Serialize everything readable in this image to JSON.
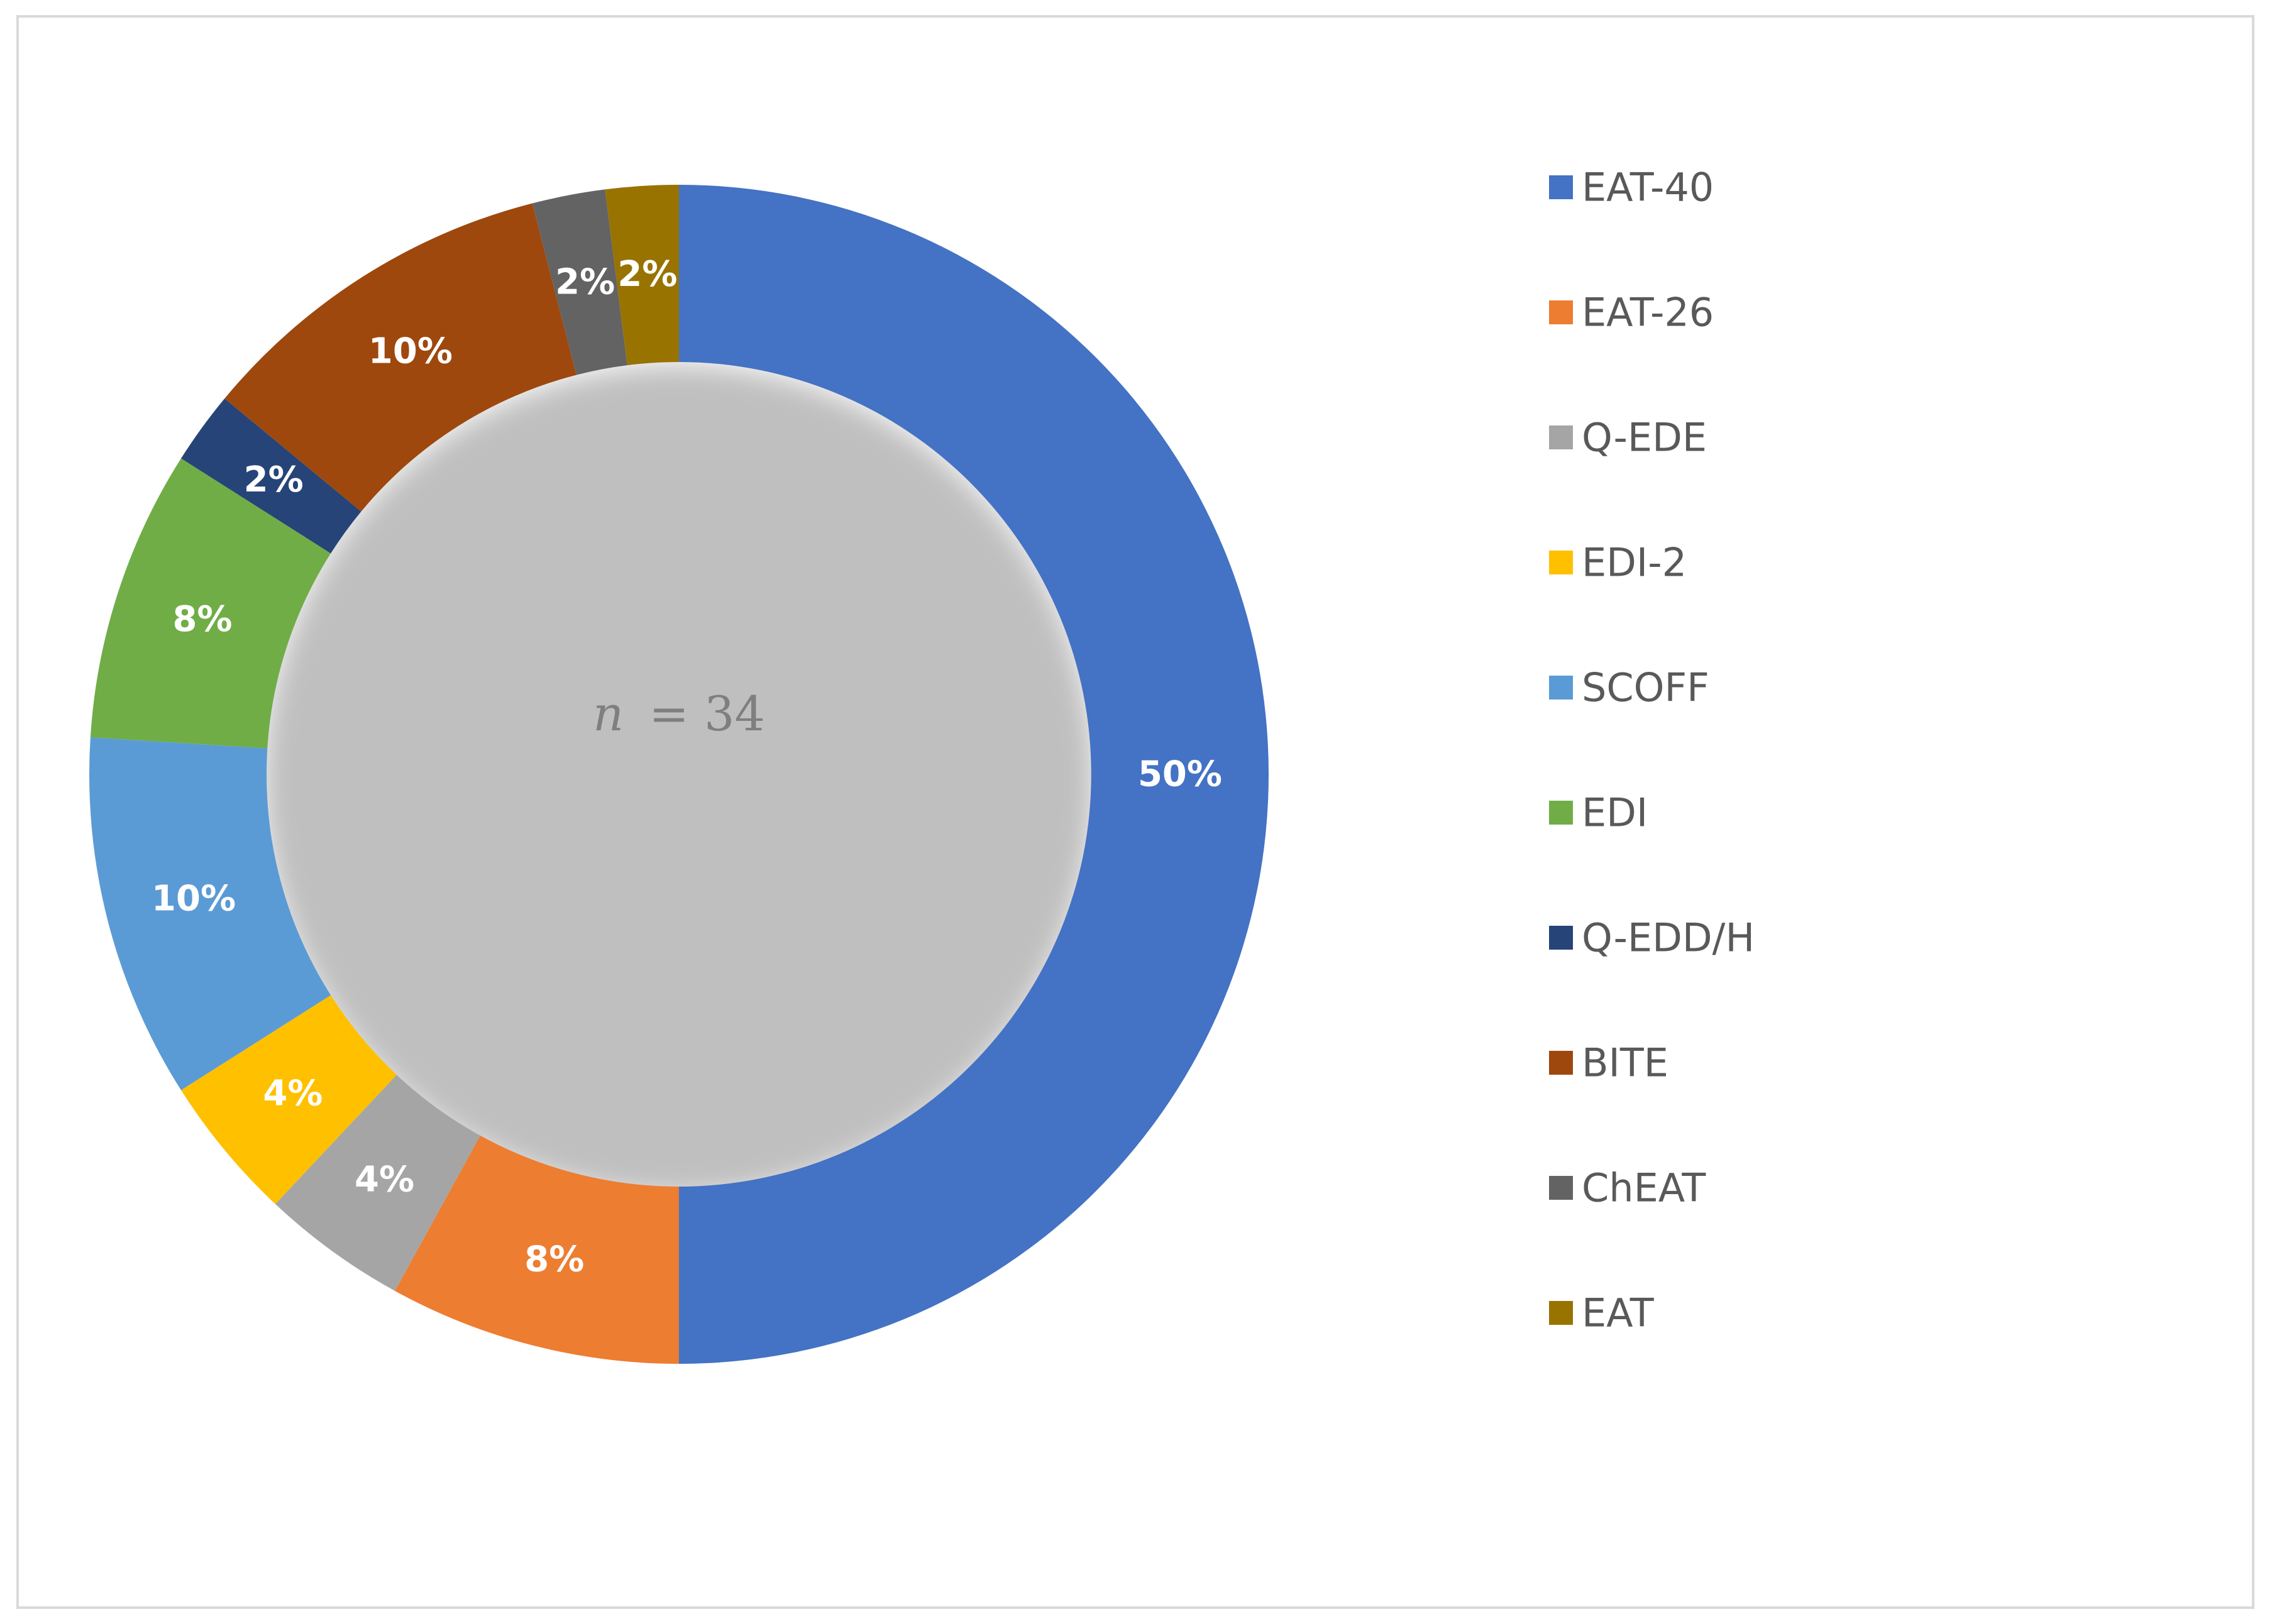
{
  "chart_data": {
    "type": "pie",
    "style": "donut",
    "title": "",
    "center_annotation": {
      "variable": "n",
      "equals": "= 34"
    },
    "legend_position": "right",
    "categories": [
      "EAT-40",
      "EAT-26",
      "Q-EDE",
      "EDI-2",
      "SCOFF",
      "EDI",
      "Q-EDD/H",
      "BITE",
      "ChEAT",
      "EAT"
    ],
    "values": [
      50,
      8,
      4,
      4,
      10,
      8,
      2,
      10,
      2,
      2
    ],
    "labels": [
      "50%",
      "8%",
      "4%",
      "4%",
      "10%",
      "8%",
      "2%",
      "10%",
      "2%",
      "2%"
    ],
    "colors": [
      "#4472C4",
      "#ED7D31",
      "#A5A5A5",
      "#FFC000",
      "#5B9BD5",
      "#70AD47",
      "#264478",
      "#9E480E",
      "#636363",
      "#997300"
    ]
  }
}
